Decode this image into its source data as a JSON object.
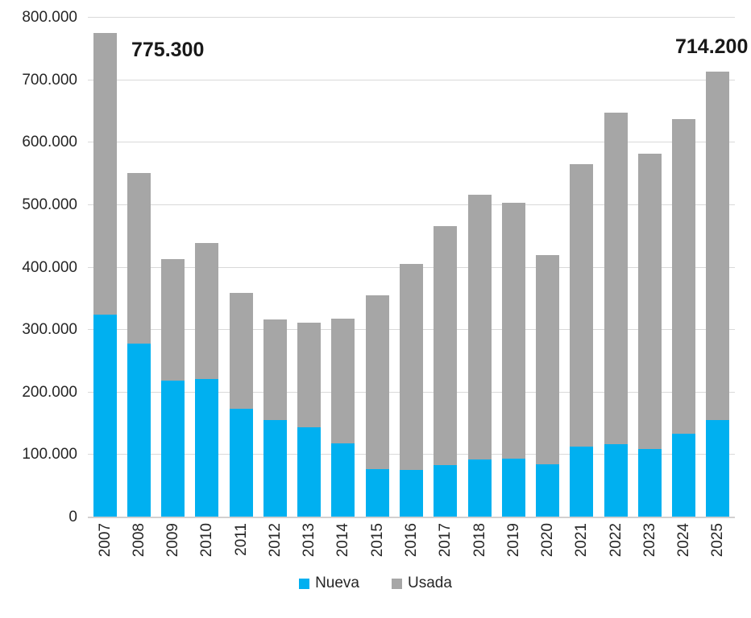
{
  "chart_data": {
    "type": "bar",
    "stacked": true,
    "title": "",
    "categories": [
      "2007",
      "2008",
      "2009",
      "2010",
      "2011",
      "2012",
      "2013",
      "2014",
      "2015",
      "2016",
      "2017",
      "2018",
      "2019",
      "2020",
      "2021",
      "2022",
      "2023",
      "2024",
      "2025"
    ],
    "series": [
      {
        "name": "Nueva",
        "color": "#00b0f0",
        "values": [
          325000,
          278000,
          219000,
          221000,
          174000,
          156000,
          144000,
          118000,
          77000,
          76000,
          84000,
          93000,
          94000,
          85000,
          114000,
          117000,
          109000,
          134000,
          156000
        ]
      },
      {
        "name": "Usada",
        "color": "#a6a6a6",
        "values": [
          450300,
          274000,
          194000,
          218000,
          186000,
          161000,
          168000,
          200000,
          278000,
          330000,
          382000,
          423000,
          410000,
          335000,
          451000,
          531000,
          473000,
          504000,
          558200
        ]
      }
    ],
    "totals": [
      775300,
      552000,
      413000,
      439000,
      360000,
      317000,
      312000,
      318000,
      355000,
      406000,
      466000,
      516000,
      504000,
      420000,
      565000,
      648000,
      582000,
      638000,
      714200
    ],
    "annotations": [
      {
        "label": "775.300",
        "year": "2007"
      },
      {
        "label": "714.200",
        "year": "2025"
      }
    ],
    "y_axis": {
      "min": 0,
      "max": 800000,
      "step": 100000,
      "tick_labels": [
        "0",
        "100.000",
        "200.000",
        "300.000",
        "400.000",
        "500.000",
        "600.000",
        "700.000",
        "800.000"
      ]
    },
    "x_axis": {
      "label_rotation": "vertical"
    },
    "grid": true,
    "legend": {
      "position": "bottom",
      "entries": [
        "Nueva",
        "Usada"
      ]
    },
    "colors": {
      "gridline": "#d9d9d9",
      "axis_text": "#262626",
      "background": "#ffffff"
    }
  }
}
